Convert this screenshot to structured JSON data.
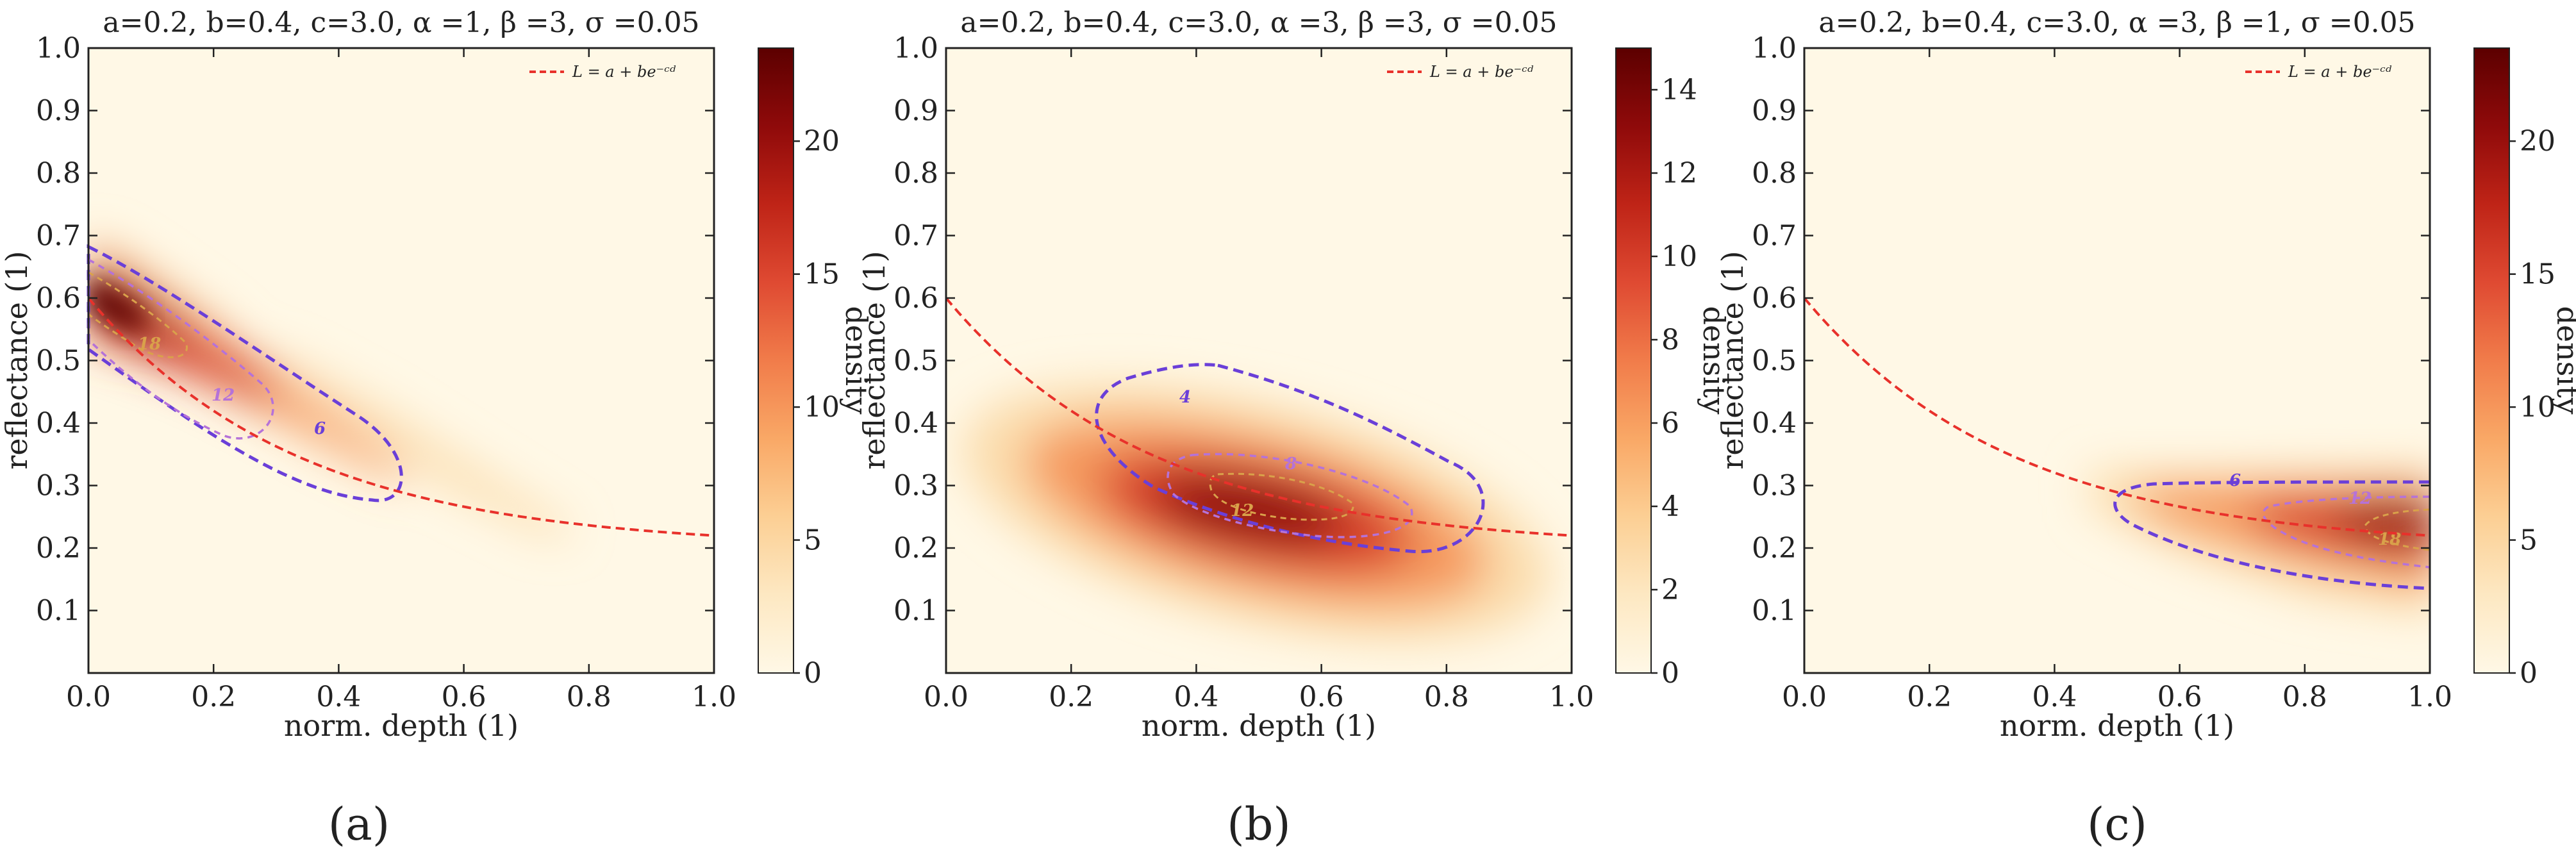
{
  "figure": {
    "panel_labels": [
      "(a)",
      "(b)",
      "(c)"
    ]
  },
  "chart_data": [
    {
      "type": "heatmap",
      "title": "a=0.2, b=0.4, c=3.0, α =1, β =3, σ =0.05",
      "xlabel": "norm. depth (1)",
      "ylabel": "reflectance (1)",
      "colorbar_label": "density",
      "xlim": [
        0.0,
        1.0
      ],
      "ylim": [
        0.0,
        1.0
      ],
      "x_ticks": [
        "0.0",
        "0.2",
        "0.4",
        "0.6",
        "0.8",
        "1.0"
      ],
      "y_ticks": [
        "0.1",
        "0.2",
        "0.3",
        "0.4",
        "0.5",
        "0.6",
        "0.7",
        "0.8",
        "0.9",
        "1.0"
      ],
      "colorbar_range": [
        0,
        23.5
      ],
      "colorbar_ticks": [
        "0",
        "5",
        "10",
        "15",
        "20"
      ],
      "legend": "L = a + be⁻ᶜᵈ",
      "curve": {
        "a": 0.2,
        "b": 0.4,
        "c": 3.0
      },
      "params": {
        "alpha": 1,
        "beta": 3,
        "sigma": 0.05
      },
      "contour_levels": [
        6,
        12,
        18
      ],
      "contour_labels": [
        "6",
        "12",
        "18"
      ]
    },
    {
      "type": "heatmap",
      "title": "a=0.2, b=0.4, c=3.0, α =3, β =3, σ =0.05",
      "xlabel": "norm. depth (1)",
      "ylabel": "reflectance (1)",
      "colorbar_label": "density",
      "xlim": [
        0.0,
        1.0
      ],
      "ylim": [
        0.0,
        1.0
      ],
      "x_ticks": [
        "0.0",
        "0.2",
        "0.4",
        "0.6",
        "0.8",
        "1.0"
      ],
      "y_ticks": [
        "0.1",
        "0.2",
        "0.3",
        "0.4",
        "0.5",
        "0.6",
        "0.7",
        "0.8",
        "0.9",
        "1.0"
      ],
      "colorbar_range": [
        0,
        15
      ],
      "colorbar_ticks": [
        "0",
        "2",
        "4",
        "6",
        "8",
        "10",
        "12",
        "14"
      ],
      "legend": "L = a + be⁻ᶜᵈ",
      "curve": {
        "a": 0.2,
        "b": 0.4,
        "c": 3.0
      },
      "params": {
        "alpha": 3,
        "beta": 3,
        "sigma": 0.05
      },
      "contour_levels": [
        4,
        8,
        12
      ],
      "contour_labels": [
        "4",
        "8",
        "12"
      ]
    },
    {
      "type": "heatmap",
      "title": "a=0.2, b=0.4, c=3.0, α =3, β =1, σ =0.05",
      "xlabel": "norm. depth (1)",
      "ylabel": "reflectance (1)",
      "colorbar_label": "density",
      "xlim": [
        0.0,
        1.0
      ],
      "ylim": [
        0.0,
        1.0
      ],
      "x_ticks": [
        "0.0",
        "0.2",
        "0.4",
        "0.6",
        "0.8",
        "1.0"
      ],
      "y_ticks": [
        "0.1",
        "0.2",
        "0.3",
        "0.4",
        "0.5",
        "0.6",
        "0.7",
        "0.8",
        "0.9",
        "1.0"
      ],
      "colorbar_range": [
        0,
        23.5
      ],
      "colorbar_ticks": [
        "0",
        "5",
        "10",
        "15",
        "20"
      ],
      "legend": "L = a + be⁻ᶜᵈ",
      "curve": {
        "a": 0.2,
        "b": 0.4,
        "c": 3.0
      },
      "params": {
        "alpha": 3,
        "beta": 1,
        "sigma": 0.05
      },
      "contour_levels": [
        6,
        12,
        18
      ],
      "contour_labels": [
        "6",
        "12",
        "18"
      ]
    }
  ],
  "colors": {
    "curve": "#e8312b",
    "contour_outer": "#6a3fd8",
    "contour_mid": "#b572d8",
    "contour_inner": "#d9a14a",
    "cmap": [
      "#fff8e6",
      "#fde8c2",
      "#fccf94",
      "#f9a866",
      "#f17c4a",
      "#df4a32",
      "#bf2417",
      "#8f0a0a",
      "#5c0000"
    ]
  }
}
